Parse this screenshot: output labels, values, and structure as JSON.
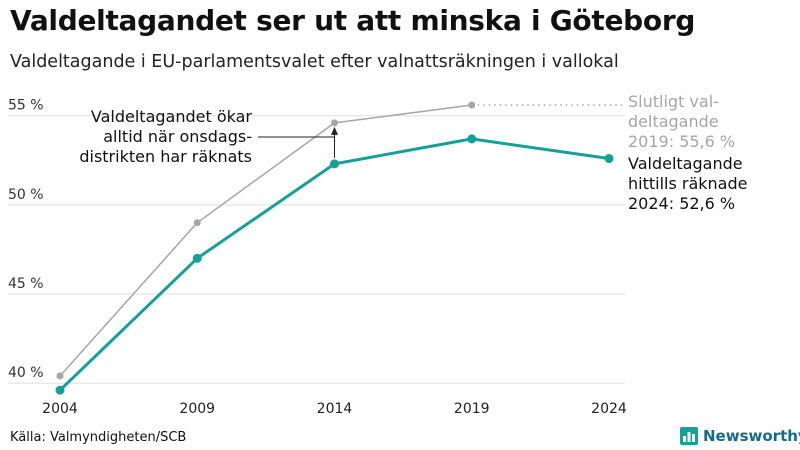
{
  "header": {
    "title": "Valdeltagandet ser ut att minska i Göteborg",
    "subtitle": "Valdeltagande i EU-parlamentsvalet efter valnattsräkningen i vallokal"
  },
  "footer": {
    "source": "Källa: Valmyndigheten/SCB",
    "brand": "Newsworthy",
    "brand_icon": "bar-chart-logo-icon"
  },
  "chart_data": {
    "type": "line",
    "x": [
      2004,
      2009,
      2014,
      2019,
      2024
    ],
    "xticks": [
      "2004",
      "2009",
      "2014",
      "2019",
      "2024"
    ],
    "yticks": [
      {
        "value": 40,
        "label": "40 %"
      },
      {
        "value": 45,
        "label": "45 %"
      },
      {
        "value": 50,
        "label": "50 %"
      },
      {
        "value": 55,
        "label": "55 %"
      }
    ],
    "ylim": [
      39.5,
      56.5
    ],
    "grid": true,
    "series": [
      {
        "key": "final",
        "values": [
          40.4,
          49.0,
          54.6,
          55.6,
          null
        ],
        "color": "#a6a6a6",
        "label_lines": [
          "Slutligt val-",
          "deltagande",
          "2019: 55,6 %"
        ]
      },
      {
        "key": "counted",
        "values": [
          39.6,
          47.0,
          52.3,
          53.7,
          52.6
        ],
        "color": "#15a196",
        "label_lines": [
          "Valdeltagande",
          "hittills räknade",
          "2024: 52,6 %"
        ]
      }
    ],
    "annotation": {
      "lines": [
        "Valdeltagandet ökar",
        "alltid när onsdags-",
        "distrikten har räknats"
      ],
      "x": 2014,
      "from_value": 52.3,
      "to_value": 54.6
    }
  }
}
